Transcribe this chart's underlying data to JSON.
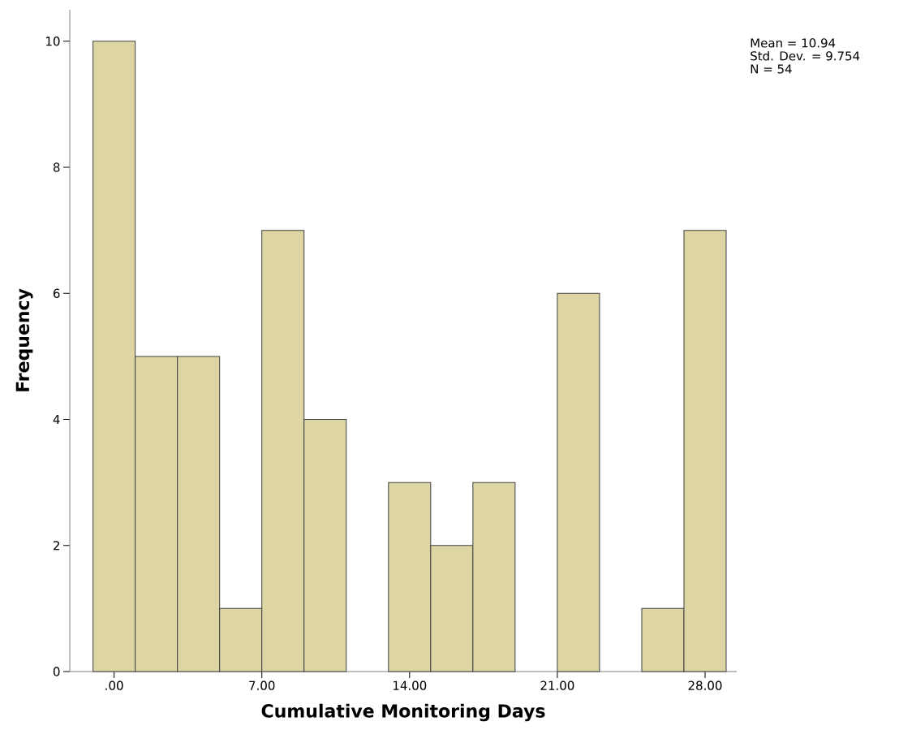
{
  "chart_data": {
    "type": "histogram",
    "xlabel": "Cumulative Monitoring Days",
    "ylabel": "Frequency",
    "bins": [
      -1,
      1,
      3,
      5,
      7,
      9,
      11,
      13,
      15,
      17,
      19,
      21,
      23,
      25,
      27,
      29
    ],
    "values": [
      10,
      5,
      5,
      1,
      7,
      4,
      0,
      3,
      2,
      3,
      0,
      6,
      0,
      1,
      7
    ],
    "color": "#ddd6a4",
    "xlim": [
      -2.1,
      29.5
    ],
    "ylim": [
      0,
      10.5
    ],
    "xticks": [
      {
        "value": 0,
        "label": ".00"
      },
      {
        "value": 7,
        "label": "7.00"
      },
      {
        "value": 14,
        "label": "14.00"
      },
      {
        "value": 21,
        "label": "21.00"
      },
      {
        "value": 28,
        "label": "28.00"
      }
    ],
    "yticks": [
      0,
      2,
      4,
      6,
      8,
      10
    ],
    "grid": false,
    "annotations": [
      "Mean = 10.94",
      "Std. Dev. = 9.754",
      "N = 54"
    ]
  }
}
